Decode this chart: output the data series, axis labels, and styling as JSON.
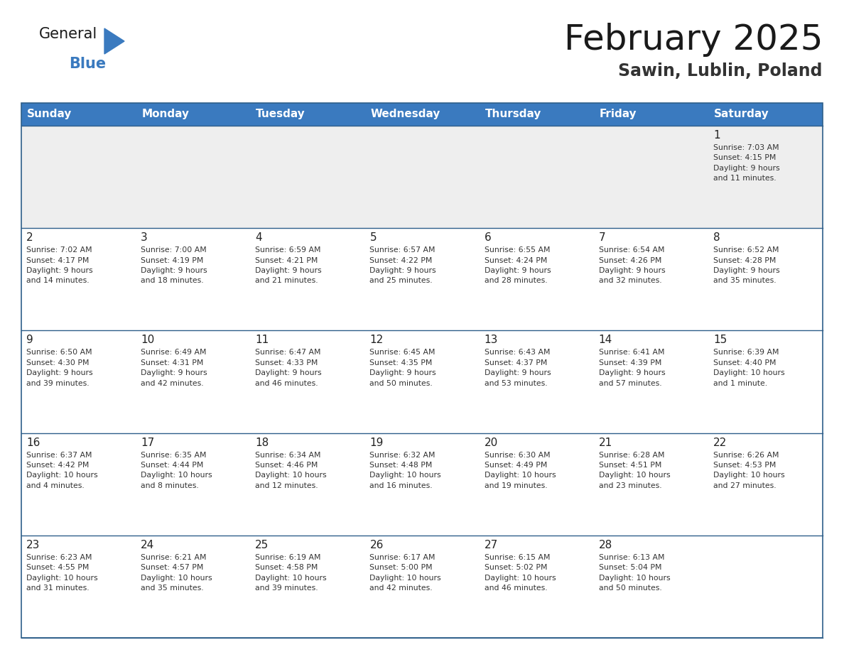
{
  "title": "February 2025",
  "subtitle": "Sawin, Lublin, Poland",
  "days_of_week": [
    "Sunday",
    "Monday",
    "Tuesday",
    "Wednesday",
    "Thursday",
    "Friday",
    "Saturday"
  ],
  "header_bg_color": "#3a7abf",
  "header_text_color": "#ffffff",
  "cell_bg_row0": "#eeeeee",
  "cell_bg_default": "#ffffff",
  "row_line_color": "#2e5f8a",
  "day_number_color": "#222222",
  "cell_text_color": "#333333",
  "title_color": "#1a1a1a",
  "subtitle_color": "#333333",
  "calendar_data": [
    [
      {
        "day": null,
        "info": null
      },
      {
        "day": null,
        "info": null
      },
      {
        "day": null,
        "info": null
      },
      {
        "day": null,
        "info": null
      },
      {
        "day": null,
        "info": null
      },
      {
        "day": null,
        "info": null
      },
      {
        "day": 1,
        "info": "Sunrise: 7:03 AM\nSunset: 4:15 PM\nDaylight: 9 hours\nand 11 minutes."
      }
    ],
    [
      {
        "day": 2,
        "info": "Sunrise: 7:02 AM\nSunset: 4:17 PM\nDaylight: 9 hours\nand 14 minutes."
      },
      {
        "day": 3,
        "info": "Sunrise: 7:00 AM\nSunset: 4:19 PM\nDaylight: 9 hours\nand 18 minutes."
      },
      {
        "day": 4,
        "info": "Sunrise: 6:59 AM\nSunset: 4:21 PM\nDaylight: 9 hours\nand 21 minutes."
      },
      {
        "day": 5,
        "info": "Sunrise: 6:57 AM\nSunset: 4:22 PM\nDaylight: 9 hours\nand 25 minutes."
      },
      {
        "day": 6,
        "info": "Sunrise: 6:55 AM\nSunset: 4:24 PM\nDaylight: 9 hours\nand 28 minutes."
      },
      {
        "day": 7,
        "info": "Sunrise: 6:54 AM\nSunset: 4:26 PM\nDaylight: 9 hours\nand 32 minutes."
      },
      {
        "day": 8,
        "info": "Sunrise: 6:52 AM\nSunset: 4:28 PM\nDaylight: 9 hours\nand 35 minutes."
      }
    ],
    [
      {
        "day": 9,
        "info": "Sunrise: 6:50 AM\nSunset: 4:30 PM\nDaylight: 9 hours\nand 39 minutes."
      },
      {
        "day": 10,
        "info": "Sunrise: 6:49 AM\nSunset: 4:31 PM\nDaylight: 9 hours\nand 42 minutes."
      },
      {
        "day": 11,
        "info": "Sunrise: 6:47 AM\nSunset: 4:33 PM\nDaylight: 9 hours\nand 46 minutes."
      },
      {
        "day": 12,
        "info": "Sunrise: 6:45 AM\nSunset: 4:35 PM\nDaylight: 9 hours\nand 50 minutes."
      },
      {
        "day": 13,
        "info": "Sunrise: 6:43 AM\nSunset: 4:37 PM\nDaylight: 9 hours\nand 53 minutes."
      },
      {
        "day": 14,
        "info": "Sunrise: 6:41 AM\nSunset: 4:39 PM\nDaylight: 9 hours\nand 57 minutes."
      },
      {
        "day": 15,
        "info": "Sunrise: 6:39 AM\nSunset: 4:40 PM\nDaylight: 10 hours\nand 1 minute."
      }
    ],
    [
      {
        "day": 16,
        "info": "Sunrise: 6:37 AM\nSunset: 4:42 PM\nDaylight: 10 hours\nand 4 minutes."
      },
      {
        "day": 17,
        "info": "Sunrise: 6:35 AM\nSunset: 4:44 PM\nDaylight: 10 hours\nand 8 minutes."
      },
      {
        "day": 18,
        "info": "Sunrise: 6:34 AM\nSunset: 4:46 PM\nDaylight: 10 hours\nand 12 minutes."
      },
      {
        "day": 19,
        "info": "Sunrise: 6:32 AM\nSunset: 4:48 PM\nDaylight: 10 hours\nand 16 minutes."
      },
      {
        "day": 20,
        "info": "Sunrise: 6:30 AM\nSunset: 4:49 PM\nDaylight: 10 hours\nand 19 minutes."
      },
      {
        "day": 21,
        "info": "Sunrise: 6:28 AM\nSunset: 4:51 PM\nDaylight: 10 hours\nand 23 minutes."
      },
      {
        "day": 22,
        "info": "Sunrise: 6:26 AM\nSunset: 4:53 PM\nDaylight: 10 hours\nand 27 minutes."
      }
    ],
    [
      {
        "day": 23,
        "info": "Sunrise: 6:23 AM\nSunset: 4:55 PM\nDaylight: 10 hours\nand 31 minutes."
      },
      {
        "day": 24,
        "info": "Sunrise: 6:21 AM\nSunset: 4:57 PM\nDaylight: 10 hours\nand 35 minutes."
      },
      {
        "day": 25,
        "info": "Sunrise: 6:19 AM\nSunset: 4:58 PM\nDaylight: 10 hours\nand 39 minutes."
      },
      {
        "day": 26,
        "info": "Sunrise: 6:17 AM\nSunset: 5:00 PM\nDaylight: 10 hours\nand 42 minutes."
      },
      {
        "day": 27,
        "info": "Sunrise: 6:15 AM\nSunset: 5:02 PM\nDaylight: 10 hours\nand 46 minutes."
      },
      {
        "day": 28,
        "info": "Sunrise: 6:13 AM\nSunset: 5:04 PM\nDaylight: 10 hours\nand 50 minutes."
      },
      {
        "day": null,
        "info": null
      }
    ]
  ],
  "logo_text_general": "General",
  "logo_text_blue": "Blue",
  "logo_color_general": "#1a1a1a",
  "logo_color_blue": "#3a7abf",
  "logo_triangle_color": "#3a7abf"
}
